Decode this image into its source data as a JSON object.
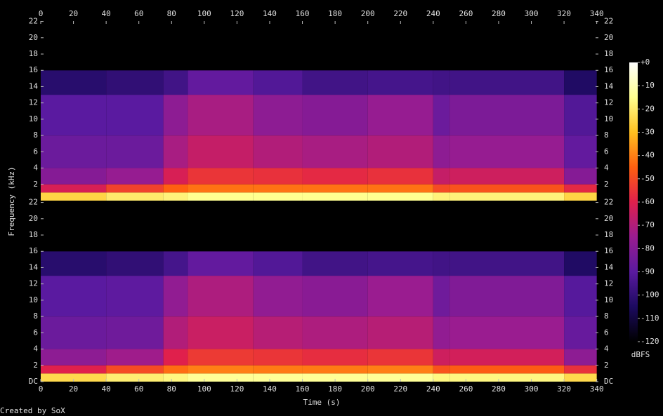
{
  "chart_data": {
    "type": "spectrogram",
    "xlabel": "Time (s)",
    "ylabel": "Frequency (kHz)",
    "credit": "Created by SoX",
    "colorbar_label": "dBFS",
    "xlim": [
      0,
      341
    ],
    "xticks": [
      0,
      20,
      40,
      60,
      80,
      100,
      120,
      140,
      160,
      180,
      200,
      220,
      240,
      260,
      280,
      300,
      320,
      340
    ],
    "ylim": [
      0,
      22.05
    ],
    "zlim": [
      -120,
      0
    ],
    "zticks": [
      {
        "value": 0,
        "label": "+0"
      },
      -10,
      -20,
      -30,
      -40,
      -50,
      -60,
      -70,
      -80,
      -90,
      -100,
      -110,
      -120
    ],
    "colormap": [
      "#000000",
      "#1c0a60",
      "#5a1aa0",
      "#9a1c90",
      "#e0204c",
      "#ff6010",
      "#ffc020",
      "#ffff90",
      "#ffffff"
    ],
    "time_edges": [
      0,
      40,
      75,
      90,
      130,
      160,
      200,
      240,
      250,
      320,
      340
    ],
    "freq_edges": [
      0,
      1,
      2,
      4,
      8,
      13,
      16,
      22.05
    ],
    "channels": [
      {
        "yticks": [
          2,
          4,
          6,
          8,
          10,
          12,
          14,
          16,
          18,
          20,
          22
        ],
        "values": [
          [
            -25,
            -20,
            -18,
            -15,
            -15,
            -15,
            -15,
            -18,
            -18,
            -25
          ],
          [
            -62,
            -52,
            -45,
            -42,
            -42,
            -42,
            -42,
            -50,
            -48,
            -58
          ],
          [
            -80,
            -76,
            -62,
            -55,
            -56,
            -58,
            -56,
            -66,
            -64,
            -80
          ],
          [
            -86,
            -86,
            -72,
            -66,
            -70,
            -72,
            -70,
            -78,
            -76,
            -88
          ],
          [
            -90,
            -90,
            -78,
            -72,
            -78,
            -80,
            -76,
            -86,
            -82,
            -92
          ],
          [
            -102,
            -100,
            -96,
            -88,
            -92,
            -96,
            -95,
            -96,
            -96,
            -104
          ],
          [
            -120,
            -120,
            -120,
            -120,
            -120,
            -120,
            -120,
            -120,
            -120,
            -120
          ]
        ]
      },
      {
        "yticks": [
          {
            "value": 0,
            "label": "DC"
          },
          2,
          4,
          6,
          8,
          10,
          12,
          14,
          16,
          18,
          20,
          22
        ],
        "values": [
          [
            -24,
            -19,
            -17,
            -14,
            -14,
            -14,
            -14,
            -17,
            -17,
            -24
          ],
          [
            -60,
            -50,
            -43,
            -40,
            -41,
            -41,
            -40,
            -48,
            -46,
            -56
          ],
          [
            -78,
            -74,
            -60,
            -54,
            -55,
            -57,
            -55,
            -64,
            -63,
            -78
          ],
          [
            -86,
            -85,
            -70,
            -65,
            -69,
            -71,
            -69,
            -77,
            -75,
            -87
          ],
          [
            -90,
            -89,
            -77,
            -71,
            -77,
            -79,
            -75,
            -85,
            -81,
            -91
          ],
          [
            -102,
            -100,
            -95,
            -88,
            -92,
            -96,
            -95,
            -96,
            -96,
            -104
          ],
          [
            -120,
            -120,
            -120,
            -120,
            -120,
            -120,
            -120,
            -120,
            -120,
            -120
          ]
        ]
      }
    ]
  }
}
